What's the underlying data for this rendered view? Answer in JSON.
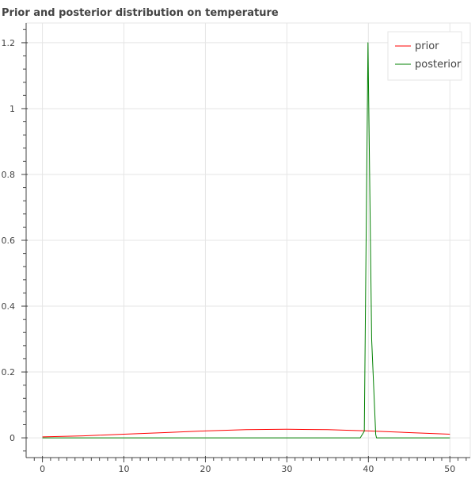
{
  "chart_data": {
    "type": "line",
    "title": "Prior and posterior distribution on temperature",
    "xlabel": "",
    "ylabel": "",
    "xlim": [
      -2,
      52.5
    ],
    "ylim": [
      -0.06,
      1.26
    ],
    "x_ticks": [
      0,
      10,
      20,
      30,
      40,
      50
    ],
    "y_ticks": [
      0,
      0.2,
      0.4,
      0.6,
      0.8,
      1.0,
      1.2
    ],
    "y_tick_labels": [
      "0",
      "0.2",
      "0.4",
      "0.6",
      "0.8",
      "1",
      "1.2"
    ],
    "grid": true,
    "legend_position": "top-right",
    "series": [
      {
        "name": "prior",
        "color": "#ff0000",
        "x": [
          0,
          5,
          10,
          15,
          20,
          25,
          30,
          35,
          40,
          45,
          50
        ],
        "y": [
          0.003,
          0.006,
          0.011,
          0.016,
          0.021,
          0.025,
          0.026,
          0.025,
          0.021,
          0.016,
          0.011
        ]
      },
      {
        "name": "posterior",
        "color": "#008000",
        "x": [
          0,
          39,
          39.5,
          39.95,
          40.4,
          40.9,
          41,
          50
        ],
        "y": [
          0,
          0,
          0.02,
          1.2,
          0.3,
          0.01,
          0,
          0
        ]
      }
    ]
  }
}
